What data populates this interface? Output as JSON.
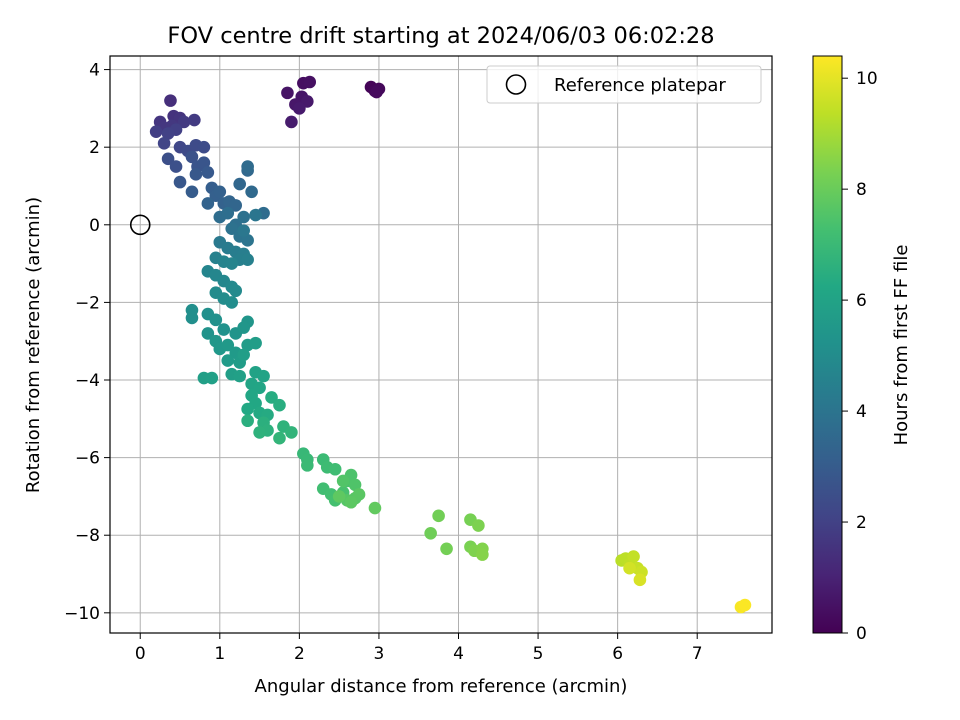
{
  "chart_data": {
    "type": "scatter",
    "title": "FOV centre drift starting at 2024/06/03 06:02:28",
    "xlabel": "Angular distance from reference (arcmin)",
    "ylabel": "Rotation from reference (arcmin)",
    "xlim": [
      -0.38,
      7.94
    ],
    "ylim": [
      -10.52,
      4.35
    ],
    "xticks": [
      "0",
      "1",
      "2",
      "3",
      "4",
      "5",
      "6",
      "7"
    ],
    "yticks": [
      "−10",
      "−8",
      "−6",
      "−4",
      "−2",
      "0",
      "2",
      "4"
    ],
    "grid": true,
    "legend": {
      "position": "top-right",
      "label": "Reference platepar"
    },
    "reference_point": {
      "x": 0,
      "y": 0
    },
    "colorbar": {
      "label": "Hours from first FF file",
      "colormap": "viridis",
      "range": [
        0,
        10.4
      ],
      "ticks": [
        "0",
        "2",
        "4",
        "6",
        "8",
        "10"
      ]
    },
    "series": [
      {
        "points": [
          [
            2.9,
            3.55,
            0.1
          ],
          [
            2.95,
            3.45,
            0.15
          ],
          [
            3.0,
            3.5,
            0.2
          ],
          [
            2.97,
            3.42,
            0.25
          ],
          [
            2.05,
            3.65,
            0.4
          ],
          [
            2.13,
            3.68,
            0.45
          ],
          [
            1.85,
            3.4,
            0.55
          ],
          [
            2.03,
            3.3,
            0.6
          ],
          [
            1.95,
            3.1,
            0.65
          ],
          [
            2.1,
            3.18,
            0.7
          ],
          [
            2.0,
            3.0,
            0.75
          ],
          [
            1.9,
            2.65,
            0.8
          ],
          [
            0.38,
            3.2,
            1.4
          ],
          [
            0.42,
            2.8,
            1.5
          ],
          [
            0.5,
            2.75,
            1.55
          ],
          [
            0.25,
            2.65,
            1.6
          ],
          [
            0.3,
            2.5,
            1.65
          ],
          [
            0.4,
            2.55,
            1.7
          ],
          [
            0.55,
            2.65,
            1.75
          ],
          [
            0.68,
            2.7,
            1.8
          ],
          [
            0.2,
            2.4,
            1.9
          ],
          [
            0.45,
            2.45,
            1.95
          ],
          [
            0.35,
            2.35,
            2.0
          ],
          [
            0.3,
            2.1,
            2.1
          ],
          [
            0.5,
            2.0,
            2.2
          ],
          [
            0.6,
            1.9,
            2.3
          ],
          [
            0.7,
            2.05,
            2.35
          ],
          [
            0.8,
            2.0,
            2.4
          ],
          [
            0.35,
            1.7,
            2.5
          ],
          [
            0.45,
            1.5,
            2.55
          ],
          [
            0.65,
            1.75,
            2.6
          ],
          [
            0.72,
            1.5,
            2.7
          ],
          [
            0.8,
            1.6,
            2.75
          ],
          [
            0.5,
            1.1,
            2.8
          ],
          [
            0.7,
            1.3,
            2.85
          ],
          [
            0.85,
            1.35,
            2.9
          ],
          [
            0.65,
            0.85,
            3.0
          ],
          [
            0.9,
            0.95,
            3.1
          ],
          [
            0.95,
            0.75,
            3.15
          ],
          [
            1.0,
            0.85,
            3.2
          ],
          [
            1.05,
            0.55,
            3.25
          ],
          [
            0.85,
            0.55,
            3.3
          ],
          [
            1.12,
            0.6,
            3.35
          ],
          [
            1.2,
            0.5,
            3.4
          ],
          [
            1.25,
            1.05,
            3.45
          ],
          [
            1.35,
            1.4,
            3.5
          ],
          [
            1.4,
            0.85,
            3.55
          ],
          [
            1.35,
            1.5,
            3.6
          ],
          [
            1.55,
            0.3,
            3.65
          ],
          [
            1.0,
            0.2,
            3.7
          ],
          [
            1.1,
            0.3,
            3.75
          ],
          [
            1.2,
            0.0,
            3.8
          ],
          [
            1.3,
            0.2,
            3.85
          ],
          [
            1.15,
            -0.1,
            3.9
          ],
          [
            1.25,
            -0.3,
            3.95
          ],
          [
            1.35,
            -0.4,
            4.0
          ],
          [
            1.45,
            0.25,
            4.05
          ],
          [
            1.3,
            -0.15,
            4.1
          ],
          [
            1.0,
            -0.45,
            4.2
          ],
          [
            1.1,
            -0.6,
            4.3
          ],
          [
            1.2,
            -0.7,
            4.35
          ],
          [
            1.3,
            -0.75,
            4.4
          ],
          [
            1.25,
            -0.9,
            4.45
          ],
          [
            1.35,
            -0.9,
            4.5
          ],
          [
            0.95,
            -0.85,
            4.55
          ],
          [
            1.05,
            -0.95,
            4.6
          ],
          [
            1.15,
            -1.0,
            4.65
          ],
          [
            0.85,
            -1.2,
            4.7
          ],
          [
            0.95,
            -1.3,
            4.75
          ],
          [
            1.05,
            -1.45,
            4.8
          ],
          [
            1.15,
            -1.6,
            4.85
          ],
          [
            1.2,
            -1.7,
            4.9
          ],
          [
            0.95,
            -1.75,
            4.95
          ],
          [
            1.05,
            -1.9,
            5.0
          ],
          [
            1.15,
            -2.0,
            5.05
          ],
          [
            0.65,
            -2.2,
            5.1
          ],
          [
            0.65,
            -2.4,
            5.12
          ],
          [
            0.85,
            -2.3,
            5.15
          ],
          [
            0.95,
            -2.45,
            5.2
          ],
          [
            1.05,
            -2.7,
            5.25
          ],
          [
            0.85,
            -2.8,
            5.3
          ],
          [
            1.2,
            -2.8,
            5.35
          ],
          [
            1.35,
            -2.5,
            5.4
          ],
          [
            1.3,
            -2.65,
            5.42
          ],
          [
            0.95,
            -3.0,
            5.45
          ],
          [
            1.0,
            -3.2,
            5.5
          ],
          [
            1.1,
            -3.1,
            5.55
          ],
          [
            1.2,
            -3.3,
            5.6
          ],
          [
            1.1,
            -3.5,
            5.65
          ],
          [
            1.25,
            -3.55,
            5.7
          ],
          [
            1.35,
            -3.1,
            5.72
          ],
          [
            1.45,
            -3.05,
            5.75
          ],
          [
            1.3,
            -3.35,
            5.78
          ],
          [
            1.15,
            -3.85,
            5.8
          ],
          [
            0.8,
            -3.95,
            5.85
          ],
          [
            0.9,
            -3.95,
            5.88
          ],
          [
            1.25,
            -3.9,
            5.9
          ],
          [
            1.45,
            -3.8,
            5.95
          ],
          [
            1.55,
            -3.9,
            6.0
          ],
          [
            1.4,
            -4.1,
            6.05
          ],
          [
            1.5,
            -4.2,
            6.1
          ],
          [
            1.4,
            -4.4,
            6.15
          ],
          [
            1.45,
            -4.6,
            6.2
          ],
          [
            1.35,
            -4.75,
            6.25
          ],
          [
            1.5,
            -4.85,
            6.3
          ],
          [
            1.6,
            -4.9,
            6.35
          ],
          [
            1.65,
            -4.45,
            6.4
          ],
          [
            1.75,
            -4.65,
            6.45
          ],
          [
            1.35,
            -5.05,
            6.5
          ],
          [
            1.55,
            -5.1,
            6.55
          ],
          [
            1.6,
            -5.3,
            6.6
          ],
          [
            1.5,
            -5.35,
            6.65
          ],
          [
            1.8,
            -5.2,
            6.7
          ],
          [
            1.9,
            -5.35,
            6.75
          ],
          [
            1.75,
            -5.5,
            6.8
          ],
          [
            2.05,
            -5.9,
            6.9
          ],
          [
            2.1,
            -6.05,
            6.95
          ],
          [
            2.1,
            -6.2,
            7.0
          ],
          [
            2.3,
            -6.05,
            7.05
          ],
          [
            2.35,
            -6.25,
            7.1
          ],
          [
            2.45,
            -6.3,
            7.15
          ],
          [
            2.3,
            -6.8,
            7.2
          ],
          [
            2.4,
            -6.95,
            7.25
          ],
          [
            2.45,
            -7.1,
            7.3
          ],
          [
            2.55,
            -6.9,
            7.35
          ],
          [
            2.6,
            -6.6,
            7.4
          ],
          [
            2.65,
            -6.45,
            7.45
          ],
          [
            2.7,
            -6.7,
            7.5
          ],
          [
            2.55,
            -6.6,
            7.55
          ],
          [
            2.6,
            -7.1,
            7.6
          ],
          [
            2.7,
            -7.05,
            7.65
          ],
          [
            2.75,
            -6.95,
            7.7
          ],
          [
            2.65,
            -7.15,
            7.75
          ],
          [
            2.5,
            -7.0,
            7.8
          ],
          [
            2.95,
            -7.3,
            7.85
          ],
          [
            3.65,
            -7.95,
            8.1
          ],
          [
            3.75,
            -7.5,
            8.15
          ],
          [
            3.85,
            -8.35,
            8.2
          ],
          [
            4.15,
            -7.6,
            8.25
          ],
          [
            4.15,
            -8.3,
            8.3
          ],
          [
            4.25,
            -7.75,
            8.35
          ],
          [
            4.2,
            -8.4,
            8.4
          ],
          [
            4.3,
            -8.35,
            8.45
          ],
          [
            4.3,
            -8.5,
            8.5
          ],
          [
            6.05,
            -8.65,
            9.3
          ],
          [
            6.1,
            -8.6,
            9.35
          ],
          [
            6.15,
            -8.75,
            9.4
          ],
          [
            6.2,
            -8.55,
            9.45
          ],
          [
            6.25,
            -8.85,
            9.5
          ],
          [
            6.3,
            -8.95,
            9.6
          ],
          [
            6.15,
            -8.85,
            9.7
          ],
          [
            6.28,
            -9.15,
            9.8
          ],
          [
            7.55,
            -9.85,
            10.3
          ],
          [
            7.6,
            -9.8,
            10.35
          ]
        ]
      }
    ]
  }
}
